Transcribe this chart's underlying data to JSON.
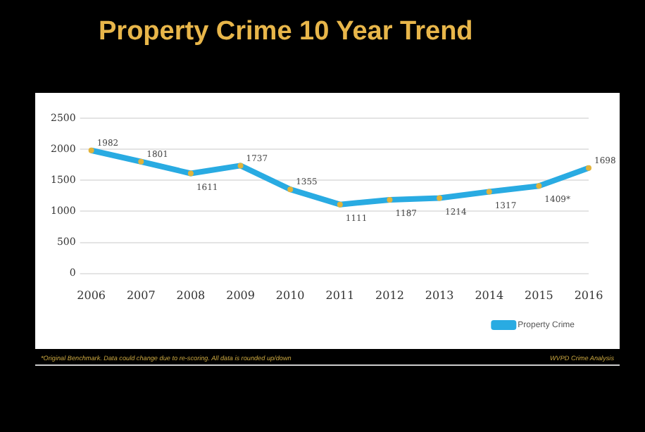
{
  "chart_data": {
    "type": "line",
    "title": "Property Crime 10 Year Trend",
    "categories": [
      "2006",
      "2007",
      "2008",
      "2009",
      "2010",
      "2011",
      "2012",
      "2013",
      "2014",
      "2015",
      "2016"
    ],
    "series": [
      {
        "name": "Property Crime",
        "color": "#29abe2",
        "values": [
          1982,
          1801,
          1611,
          1737,
          1355,
          1111,
          1187,
          1214,
          1317,
          1409,
          1698
        ],
        "value_labels": [
          "1982",
          "1801",
          "1611",
          "1737",
          "1355",
          "1111",
          "1187",
          "1214",
          "1317",
          "1409*",
          "1698"
        ]
      }
    ],
    "ylim": [
      0,
      2500
    ],
    "yticks": [
      0,
      500,
      1000,
      1500,
      2000,
      2500
    ],
    "grid": "y",
    "legend": "bottom right",
    "marker": "circle",
    "line_style": "solid",
    "annotations": [
      "*Original Benchmark. Data could change due to re-scoring. All data is rounded up/down",
      "WVPD Crime Analysis"
    ]
  }
}
